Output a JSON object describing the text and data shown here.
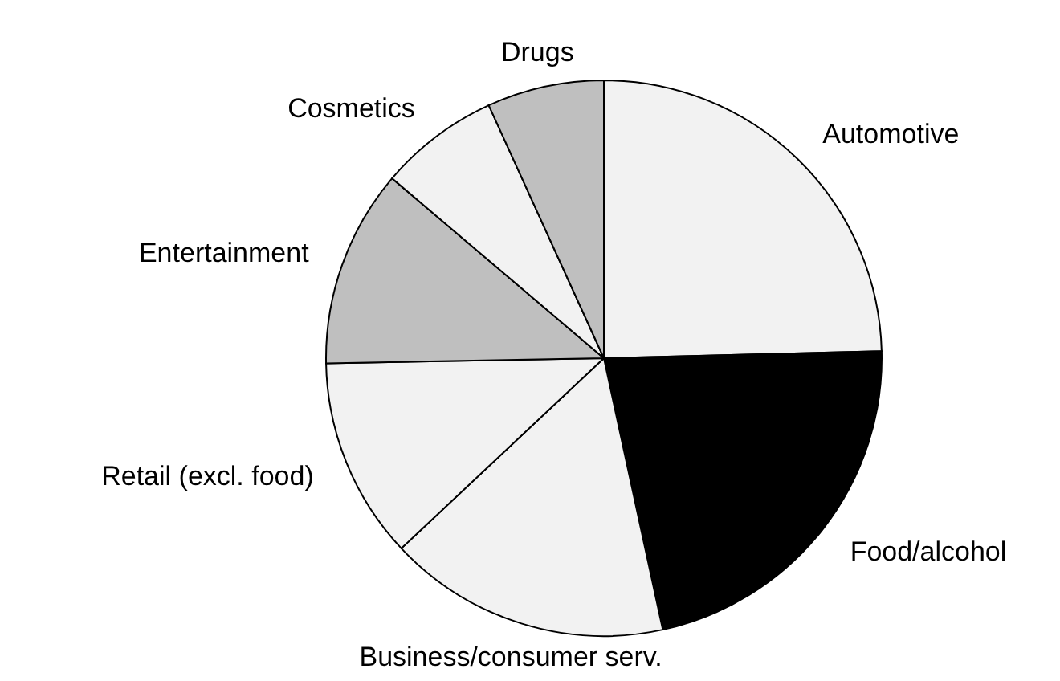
{
  "chart_data": {
    "type": "pie",
    "categories": [
      "Automotive",
      "Food/alcohol",
      "Business/consumer serv.",
      "Retail (excl. food)",
      "Entertainment",
      "Cosmetics",
      "Drugs"
    ],
    "values": [
      24.6,
      22.0,
      16.4,
      11.7,
      11.5,
      7.0,
      6.8
    ],
    "colors": [
      "#f2f2f2",
      "#000000",
      "#f2f2f2",
      "#f2f2f2",
      "#bfbfbf",
      "#f2f2f2",
      "#bfbfbf"
    ]
  }
}
